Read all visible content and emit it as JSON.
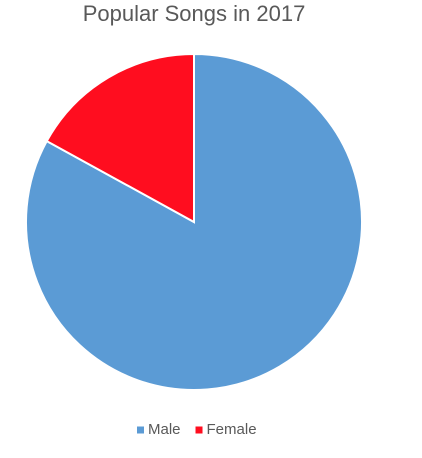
{
  "chart_data": {
    "type": "pie",
    "title": "Popular Songs in 2017",
    "categories": [
      "Male",
      "Female"
    ],
    "values": [
      83,
      17
    ],
    "colors": [
      "#5b9bd5",
      "#ff0d1f"
    ],
    "legend": "bottom"
  }
}
